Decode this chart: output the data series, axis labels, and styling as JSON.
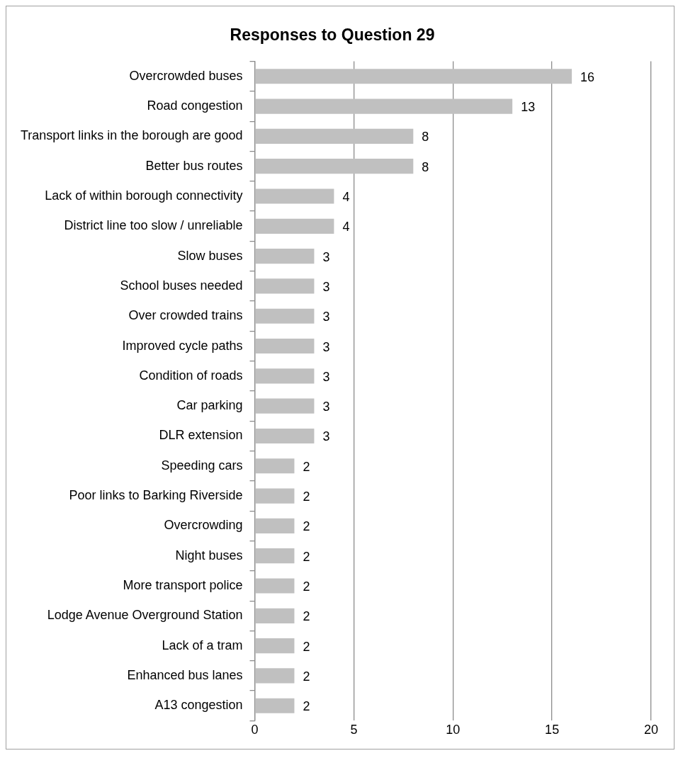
{
  "chart_data": {
    "type": "bar",
    "orientation": "horizontal",
    "title": "Responses to Question 29",
    "categories": [
      "Overcrowded buses",
      "Road congestion",
      "Transport links in the borough are good",
      "Better bus routes",
      "Lack of within borough connectivity",
      "District line too slow / unreliable",
      "Slow buses",
      "School buses needed",
      "Over crowded trains",
      "Improved cycle paths",
      "Condition of roads",
      "Car parking",
      "DLR extension",
      "Speeding cars",
      "Poor links to Barking Riverside",
      "Overcrowding",
      "Night buses",
      "More transport police",
      "Lodge Avenue Overground Station",
      "Lack of a tram",
      "Enhanced bus lanes",
      "A13 congestion"
    ],
    "values": [
      16,
      13,
      8,
      8,
      4,
      4,
      3,
      3,
      3,
      3,
      3,
      3,
      3,
      2,
      2,
      2,
      2,
      2,
      2,
      2,
      2,
      2
    ],
    "color": "#c0c0c0",
    "xlim": [
      0,
      20
    ],
    "xticks": [
      0,
      5,
      10,
      15,
      20
    ],
    "grid": "x",
    "data_labels": true,
    "legend": false
  }
}
